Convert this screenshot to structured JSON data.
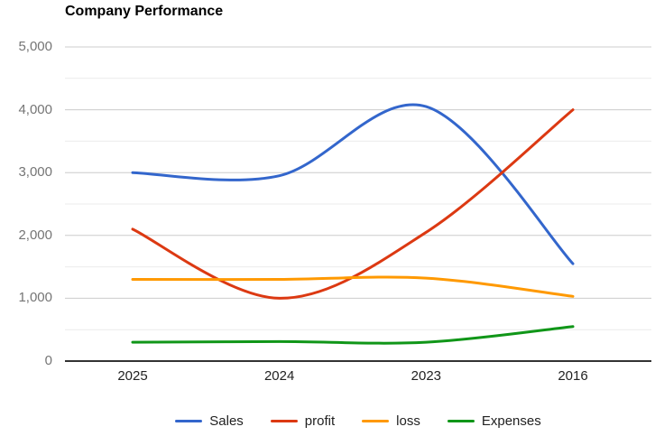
{
  "chart_data": {
    "type": "line",
    "smooth_curves": true,
    "title": "Company Performance",
    "categories": [
      "2025",
      "2024",
      "2023",
      "2016"
    ],
    "series": [
      {
        "name": "Sales",
        "color": "#3366CC",
        "values": [
          3000,
          2950,
          4050,
          1550
        ]
      },
      {
        "name": "profit",
        "color": "#DC3912",
        "values": [
          2100,
          1000,
          2050,
          4000
        ]
      },
      {
        "name": "loss",
        "color": "#FF9900",
        "values": [
          1300,
          1300,
          1320,
          1030
        ]
      },
      {
        "name": "Expenses",
        "color": "#109618",
        "values": [
          300,
          310,
          300,
          550
        ]
      }
    ],
    "xlabel": "",
    "ylabel": "",
    "ylim": [
      0,
      5000
    ],
    "y_major_ticks": [
      0,
      1000,
      2000,
      3000,
      4000,
      5000
    ],
    "y_tick_labels": [
      "0",
      "1,000",
      "2,000",
      "3,000",
      "4,000",
      "5,000"
    ],
    "y_minor_ticks": [
      500,
      1500,
      2500,
      3500,
      4500
    ],
    "grid": true,
    "legend_position": "bottom",
    "colors": {
      "major_gridline": "#cccccc",
      "minor_gridline": "#ebebeb",
      "baseline": "#333333",
      "y_label": "#757575",
      "x_label": "#222222",
      "title": "#000000",
      "background": "#ffffff"
    }
  }
}
